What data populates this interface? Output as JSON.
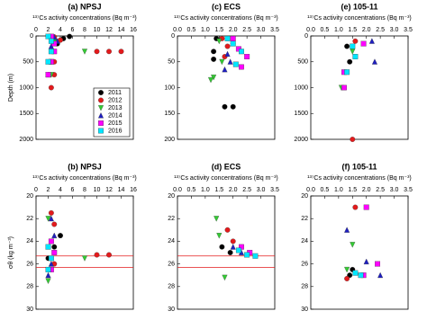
{
  "chart_data": [
    {
      "type": "scatter",
      "title": "(a) NPSJ",
      "xlabel": "¹³⁷Cs activity concentrations (Bq m⁻³)",
      "ylabel": "Depth (m)",
      "xlim": [
        0,
        16
      ],
      "xticks": [
        0,
        2,
        4,
        6,
        8,
        10,
        12,
        14,
        16
      ],
      "ylim": [
        0,
        2000
      ],
      "yticks": [
        0,
        500,
        1000,
        1500,
        2000
      ],
      "y_inverted": true,
      "legend": "lower right",
      "series": [
        {
          "name": "2011",
          "color": "#000000",
          "marker": "circle",
          "x": [
            5.5,
            4.5,
            3.5
          ],
          "values": [
            10,
            50,
            150
          ]
        },
        {
          "name": "2012",
          "color": "#e31a1c",
          "marker": "circle",
          "x": [
            3,
            4,
            12,
            10,
            14,
            3,
            3,
            2.5
          ],
          "values": [
            20,
            80,
            300,
            300,
            300,
            500,
            750,
            1000
          ]
        },
        {
          "name": "2013",
          "color": "#33cc33",
          "marker": "triangle-down",
          "x": [
            2.5,
            3,
            8,
            2.5,
            2.5
          ],
          "values": [
            30,
            100,
            300,
            500,
            750
          ]
        },
        {
          "name": "2014",
          "color": "#1f1fbf",
          "marker": "triangle-up",
          "x": [
            3,
            3.5,
            2.5,
            2.5,
            2
          ],
          "values": [
            20,
            100,
            200,
            500,
            750
          ]
        },
        {
          "name": "2015",
          "color": "#ff00ff",
          "marker": "square",
          "x": [
            2.5,
            3,
            3,
            2.5,
            2
          ],
          "values": [
            10,
            150,
            300,
            500,
            750
          ]
        },
        {
          "name": "2016",
          "color": "#00e5ff",
          "marker": "square",
          "x": [
            2,
            2.5,
            2.5,
            2
          ],
          "values": [
            10,
            100,
            300,
            500
          ]
        }
      ]
    },
    {
      "type": "scatter",
      "title": "(c) ECS",
      "xlabel": "¹³⁷Cs activity concentrations (Bq m⁻³)",
      "xlim": [
        0,
        3.5
      ],
      "xticks": [
        {
          "value": 0,
          "label": "0.0"
        },
        0.5,
        {
          "value": 1,
          "label": "1.0"
        },
        1.5,
        {
          "value": 2,
          "label": "2.0"
        },
        2.5,
        {
          "value": 3,
          "label": "3.0"
        },
        3.5
      ],
      "ylim": [
        0,
        200
      ],
      "yticks": [
        0,
        50,
        100,
        150,
        200
      ],
      "y_inverted": true,
      "series": [
        {
          "color": "#000000",
          "marker": "circle",
          "x": [
            1.4,
            1.3,
            1.3,
            2,
            1.7
          ],
          "values": [
            5,
            30,
            45,
            137,
            137
          ]
        },
        {
          "color": "#e31a1c",
          "marker": "circle",
          "x": [
            1.6,
            1.8,
            1.7
          ],
          "values": [
            5,
            20,
            40
          ]
        },
        {
          "color": "#33cc33",
          "marker": "triangle-down",
          "x": [
            1.5,
            1.6,
            1.3,
            1.2
          ],
          "values": [
            10,
            50,
            80,
            85
          ]
        },
        {
          "color": "#1f1fbf",
          "marker": "triangle-up",
          "x": [
            2,
            1.8,
            1.9,
            1.7
          ],
          "values": [
            10,
            35,
            50,
            65
          ]
        },
        {
          "color": "#ff00ff",
          "marker": "square",
          "x": [
            2,
            2.2,
            2.5,
            2.3
          ],
          "values": [
            5,
            25,
            40,
            60
          ]
        },
        {
          "color": "#00e5ff",
          "marker": "square",
          "x": [
            1.8,
            2,
            2.3,
            2.1
          ],
          "values": [
            5,
            15,
            30,
            55
          ]
        }
      ]
    },
    {
      "type": "scatter",
      "title": "(e) 105-11",
      "xlabel": "¹³⁷Cs activity concentrations (Bq m⁻³)",
      "xlim": [
        0,
        3.5
      ],
      "xticks": [
        {
          "value": 0,
          "label": "0.0"
        },
        0.5,
        {
          "value": 1,
          "label": "1.0"
        },
        1.5,
        {
          "value": 2,
          "label": "2.0"
        },
        2.5,
        {
          "value": 3,
          "label": "3.0"
        },
        3.5
      ],
      "ylim": [
        0,
        2000
      ],
      "yticks": [
        0,
        500,
        1000,
        1500,
        2000
      ],
      "y_inverted": true,
      "series": [
        {
          "color": "#000000",
          "marker": "circle",
          "x": [
            1.3,
            1.4
          ],
          "values": [
            200,
            500
          ]
        },
        {
          "color": "#e31a1c",
          "marker": "circle",
          "x": [
            1.6,
            1.5
          ],
          "values": [
            100,
            2000
          ]
        },
        {
          "color": "#33cc33",
          "marker": "triangle-down",
          "x": [
            1.1,
            1.5
          ],
          "values": [
            1000,
            300
          ]
        },
        {
          "color": "#1f1fbf",
          "marker": "triangle-up",
          "x": [
            2.2,
            2.3
          ],
          "values": [
            100,
            500
          ]
        },
        {
          "color": "#ff00ff",
          "marker": "square",
          "x": [
            1.9,
            1.2,
            1.2
          ],
          "values": [
            150,
            700,
            1000
          ]
        },
        {
          "color": "#00e5ff",
          "marker": "square",
          "x": [
            1.5,
            1.6,
            1.3
          ],
          "values": [
            200,
            400,
            700
          ]
        }
      ]
    },
    {
      "type": "scatter",
      "title": "(b) NPSJ",
      "xlabel": "¹³⁷Cs activity concentrations (Bq m⁻³)",
      "ylabel": "σθ (kg m⁻³)",
      "xlim": [
        0,
        16
      ],
      "xticks": [
        0,
        2,
        4,
        6,
        8,
        10,
        12,
        14,
        16
      ],
      "ylim": [
        20,
        30
      ],
      "yticks": [
        20,
        22,
        24,
        26,
        28,
        30
      ],
      "y_inverted": true,
      "hlines": [
        25.3,
        26.3
      ],
      "series": [
        {
          "color": "#000000",
          "marker": "circle",
          "x": [
            4,
            3,
            2
          ],
          "values": [
            23.5,
            24.5,
            25.5
          ]
        },
        {
          "color": "#e31a1c",
          "marker": "circle",
          "x": [
            2.5,
            3,
            10,
            12,
            3
          ],
          "values": [
            21.5,
            22.5,
            25.2,
            25.2,
            26
          ]
        },
        {
          "color": "#33cc33",
          "marker": "triangle-down",
          "x": [
            2,
            8,
            2.5,
            2
          ],
          "values": [
            22,
            25.5,
            26.5,
            27.5
          ]
        },
        {
          "color": "#1f1fbf",
          "marker": "triangle-up",
          "x": [
            2.5,
            3,
            2.5,
            2
          ],
          "values": [
            22,
            23.5,
            26,
            27
          ]
        },
        {
          "color": "#ff00ff",
          "marker": "square",
          "x": [
            2.5,
            3,
            2.5
          ],
          "values": [
            24,
            25,
            26.5
          ]
        },
        {
          "color": "#00e5ff",
          "marker": "square",
          "x": [
            2,
            2.5,
            2
          ],
          "values": [
            24.5,
            25.5,
            26.5
          ]
        }
      ]
    },
    {
      "type": "scatter",
      "title": "(d) ECS",
      "xlabel": "¹³⁷Cs activity concentrations (Bq m⁻³)",
      "xlim": [
        0,
        3.5
      ],
      "xticks": [
        {
          "value": 0,
          "label": "0.0"
        },
        0.5,
        {
          "value": 1,
          "label": "1.0"
        },
        1.5,
        {
          "value": 2,
          "label": "2.0"
        },
        2.5,
        {
          "value": 3,
          "label": "3.0"
        },
        3.5
      ],
      "ylim": [
        20,
        30
      ],
      "yticks": [
        20,
        22,
        24,
        26,
        28,
        30
      ],
      "y_inverted": true,
      "hlines": [
        25.3,
        26.3
      ],
      "series": [
        {
          "color": "#000000",
          "marker": "circle",
          "x": [
            1.6,
            1.9
          ],
          "values": [
            24.5,
            25
          ]
        },
        {
          "color": "#e31a1c",
          "marker": "circle",
          "x": [
            1.8,
            2
          ],
          "values": [
            23,
            24
          ]
        },
        {
          "color": "#33cc33",
          "marker": "triangle-down",
          "x": [
            1.4,
            1.5,
            1.7
          ],
          "values": [
            22,
            23.5,
            27.2
          ]
        },
        {
          "color": "#1f1fbf",
          "marker": "triangle-up",
          "x": [
            2,
            2.3
          ],
          "values": [
            24.5,
            25
          ]
        },
        {
          "color": "#ff00ff",
          "marker": "square",
          "x": [
            2.3,
            2.6
          ],
          "values": [
            24.5,
            25
          ]
        },
        {
          "color": "#00e5ff",
          "marker": "square",
          "x": [
            2.2,
            2.5,
            2.8
          ],
          "values": [
            24.8,
            25.2,
            25.3
          ]
        }
      ]
    },
    {
      "type": "scatter",
      "title": "(f) 105-11",
      "xlabel": "¹³⁷Cs activity concentrations (Bq m⁻³)",
      "xlim": [
        0,
        3.5
      ],
      "xticks": [
        {
          "value": 0,
          "label": "0.0"
        },
        0.5,
        {
          "value": 1,
          "label": "1.0"
        },
        1.5,
        {
          "value": 2,
          "label": "2.0"
        },
        2.5,
        {
          "value": 3,
          "label": "3.0"
        },
        3.5
      ],
      "ylim": [
        20,
        30
      ],
      "yticks": [
        20,
        22,
        24,
        26,
        28,
        30
      ],
      "y_inverted": true,
      "series": [
        {
          "color": "#000000",
          "marker": "circle",
          "x": [
            1.5,
            1.4
          ],
          "values": [
            26.5,
            27
          ]
        },
        {
          "color": "#e31a1c",
          "marker": "circle",
          "x": [
            1.6,
            1.3
          ],
          "values": [
            21,
            27.3
          ]
        },
        {
          "color": "#33cc33",
          "marker": "triangle-down",
          "x": [
            1.5,
            1.3
          ],
          "values": [
            24.3,
            26.5
          ]
        },
        {
          "color": "#1f1fbf",
          "marker": "triangle-up",
          "x": [
            1.3,
            2,
            2.5
          ],
          "values": [
            23,
            25.8,
            27
          ]
        },
        {
          "color": "#ff00ff",
          "marker": "square",
          "x": [
            2,
            2.4,
            1.9
          ],
          "values": [
            21,
            26,
            27
          ]
        },
        {
          "color": "#00e5ff",
          "marker": "square",
          "x": [
            1.8,
            1.6
          ],
          "values": [
            27,
            26.8
          ]
        }
      ]
    }
  ]
}
